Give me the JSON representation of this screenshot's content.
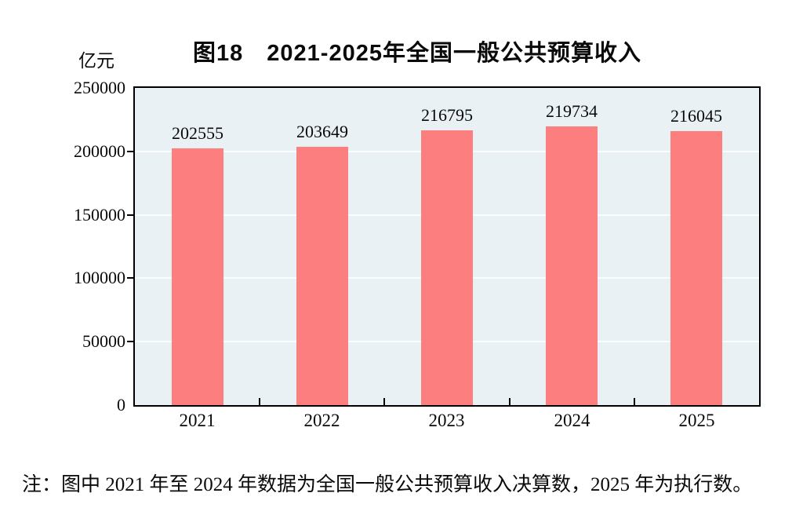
{
  "title": "图18　2021-2025年全国一般公共预算收入",
  "unit_label": "亿元",
  "note": "注：图中 2021 年至 2024 年数据为全国一般公共预算收入决算数，2025 年为执行数。",
  "colors": {
    "bar": "#FC7E7E",
    "plot_background": "#EAF1F5",
    "axis": "#000000",
    "gridline": "#F6FAFB",
    "text": "#0A0A0A"
  },
  "chart_data": {
    "type": "bar",
    "categories": [
      "2021",
      "2022",
      "2023",
      "2024",
      "2025"
    ],
    "values": [
      202555,
      203649,
      216795,
      219734,
      216045
    ],
    "title": "图18　2021-2025年全国一般公共预算收入",
    "xlabel": "",
    "ylabel": "亿元",
    "ylim": [
      0,
      250000
    ],
    "yticks": [
      0,
      50000,
      100000,
      150000,
      200000,
      250000
    ],
    "grid": true,
    "legend_position": "none",
    "data_labels": true
  }
}
